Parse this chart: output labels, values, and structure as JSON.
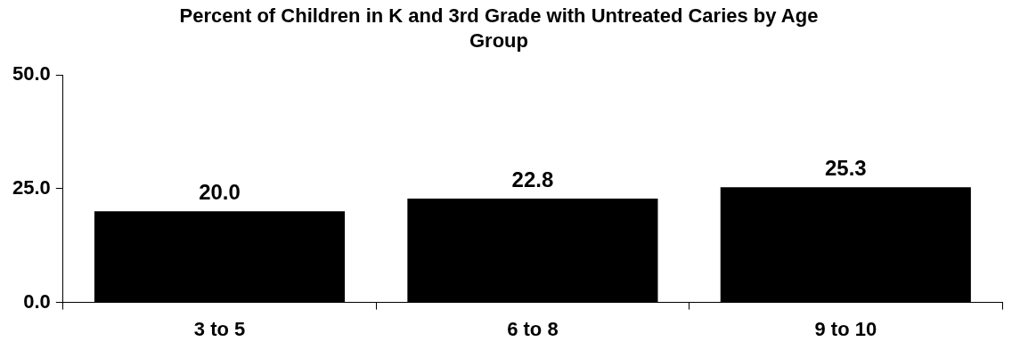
{
  "chart_data": {
    "type": "bar",
    "title": "Percent of Children in K and 3rd Grade with Untreated Caries by Age Group",
    "categories": [
      "3 to 5",
      "6 to 8",
      "9 to 10"
    ],
    "values": [
      20.0,
      22.8,
      25.3
    ],
    "value_labels": [
      "20.0",
      "22.8",
      "25.3"
    ],
    "color": "#000000",
    "ylim": [
      0,
      50
    ],
    "yticks": [
      {
        "value": 0,
        "label": "0.0"
      },
      {
        "value": 25,
        "label": "25.0"
      },
      {
        "value": 50,
        "label": "50.0"
      }
    ],
    "grid": false,
    "legend": false
  }
}
